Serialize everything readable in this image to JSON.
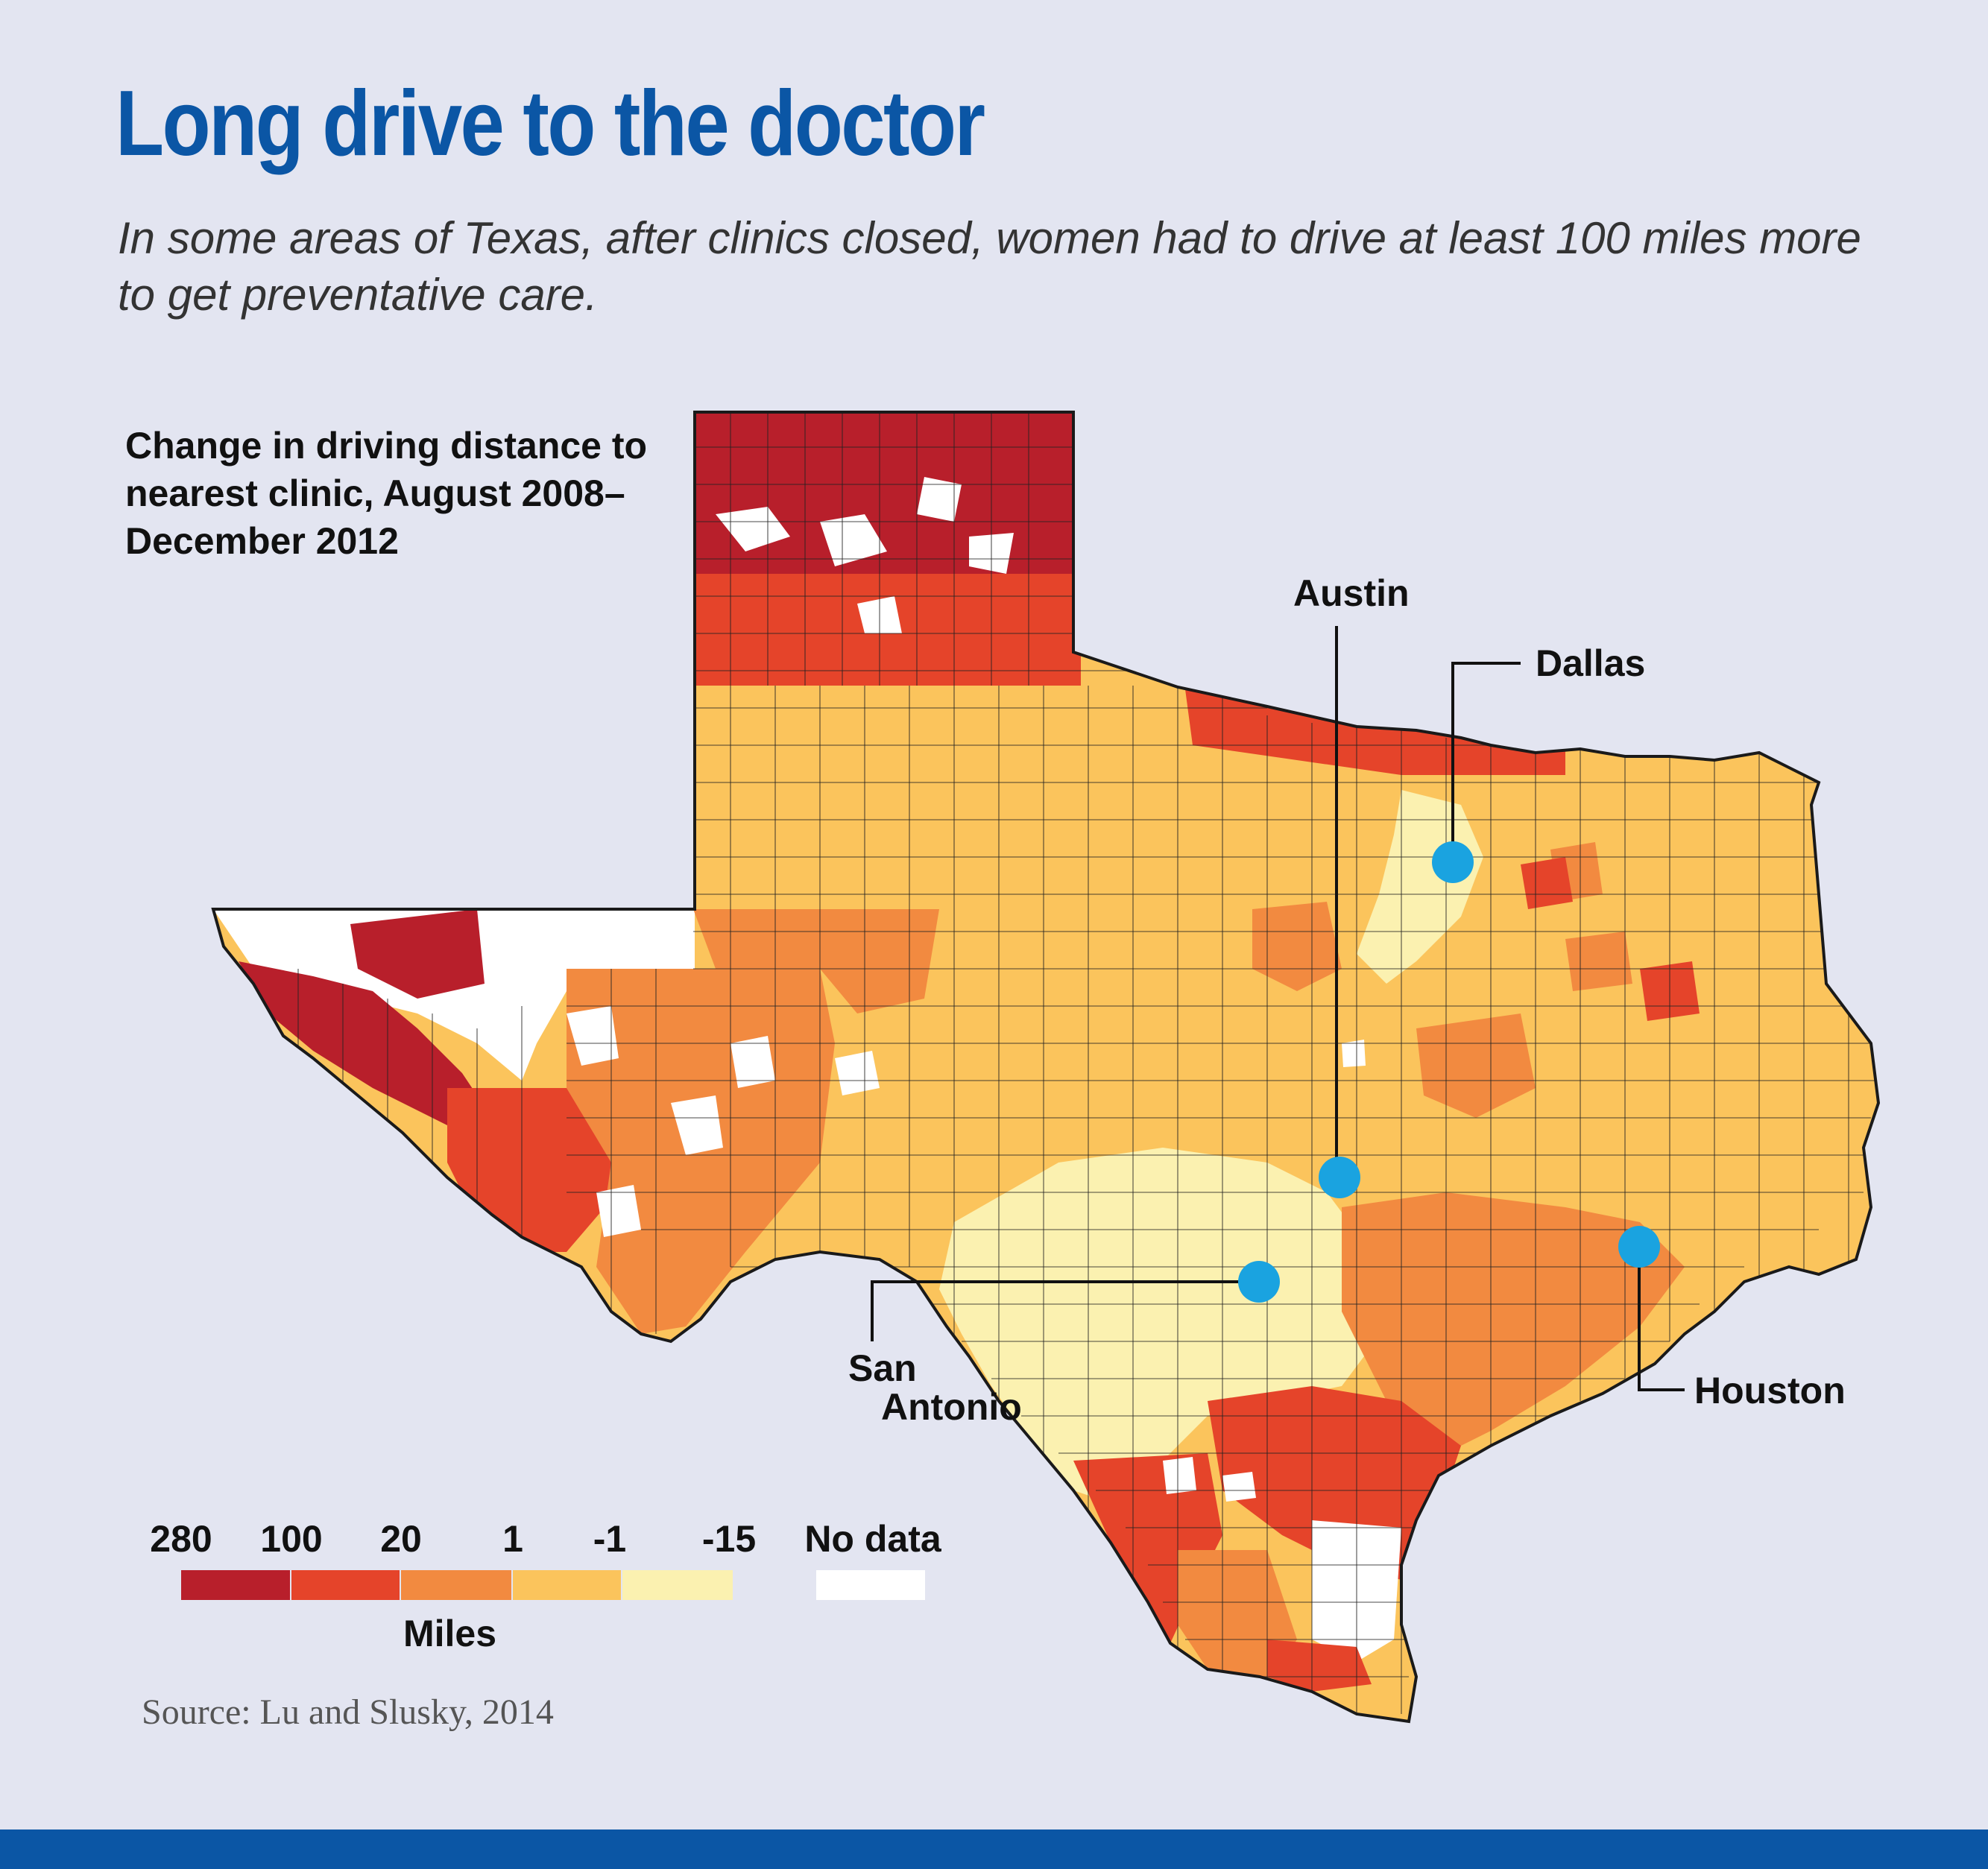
{
  "header": {
    "title": "Long drive to the doctor",
    "subtitle": "In some areas of Texas, after clinics closed, women had to drive at least 100 miles more to get preventative care."
  },
  "map": {
    "title": "Change in driving distance to nearest clinic, August 2008–December 2012",
    "region": "Texas",
    "cities": {
      "austin": "Austin",
      "dallas": "Dallas",
      "houston": "Houston",
      "san_antonio_line1": "San",
      "san_antonio_line2": "Antonio"
    },
    "marker_color": "#1aa3e0"
  },
  "legend": {
    "ticks": [
      "280",
      "100",
      "20",
      "1",
      "-1",
      "-15"
    ],
    "no_data_label": "No data",
    "unit": "Miles",
    "colors": {
      "280_to_100": "#b81f2b",
      "100_to_20": "#e5442a",
      "20_to_1": "#f28a40",
      "1_to_-1": "#fbc45c",
      "-1_to_-15": "#fbf1b0",
      "no_data": "#ffffff"
    }
  },
  "source": "Source: Lu and Slusky, 2014",
  "colors": {
    "brand_blue": "#0b56a5",
    "background": "#e3e5f1"
  }
}
